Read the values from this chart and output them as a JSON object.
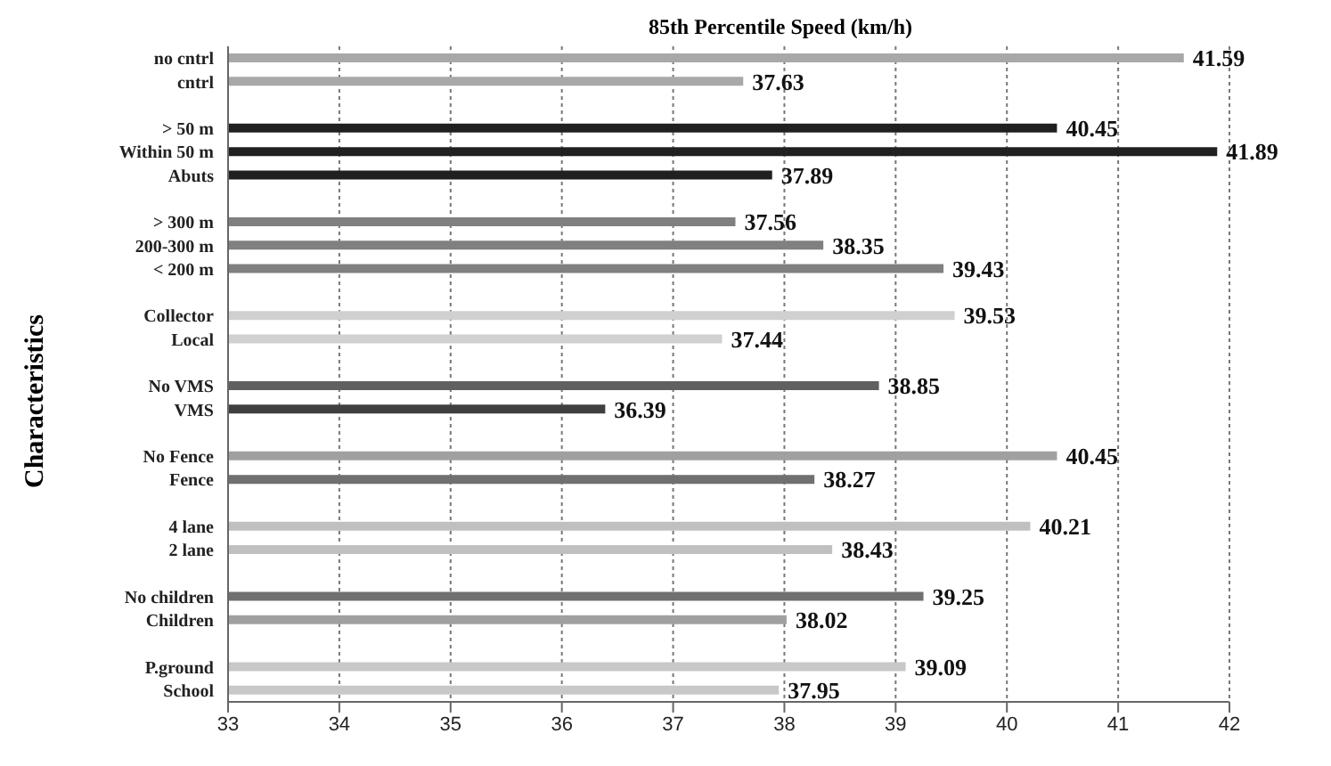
{
  "chart_data": {
    "type": "bar",
    "orientation": "horizontal",
    "title": "85th Percentile Speed (km/h)",
    "ylabel": "Characteristics",
    "categories": [
      "no cntrl",
      "cntrl",
      null,
      "> 50 m",
      "Within 50 m",
      "Abuts",
      null,
      "> 300 m",
      "200-300 m",
      "< 200 m",
      null,
      "Collector",
      "Local",
      null,
      "No VMS",
      "VMS",
      null,
      "No Fence",
      "Fence",
      null,
      "4 lane",
      "2 lane",
      null,
      "No children",
      "Children",
      null,
      "P.ground",
      "School"
    ],
    "values": [
      41.59,
      37.63,
      null,
      40.45,
      41.89,
      37.89,
      null,
      37.56,
      38.35,
      39.43,
      null,
      39.53,
      37.44,
      null,
      38.85,
      36.39,
      null,
      40.45,
      38.27,
      null,
      40.21,
      38.43,
      null,
      39.25,
      38.02,
      null,
      39.09,
      37.95
    ],
    "colors": [
      "#a8a8a8",
      "#a8a8a8",
      null,
      "#202020",
      "#202020",
      "#202020",
      null,
      "#808080",
      "#808080",
      "#808080",
      null,
      "#d0d0d0",
      "#d0d0d0",
      null,
      "#606060",
      "#404040",
      null,
      "#a0a0a0",
      "#707070",
      null,
      "#c0c0c0",
      "#c0c0c0",
      null,
      "#707070",
      "#a0a0a0",
      null,
      "#c8c8c8",
      "#c8c8c8"
    ],
    "xlim": [
      33,
      42
    ],
    "xticks": [
      33,
      34,
      35,
      36,
      37,
      38,
      39,
      40,
      41,
      42
    ],
    "grid": "x",
    "data_labels": true
  }
}
